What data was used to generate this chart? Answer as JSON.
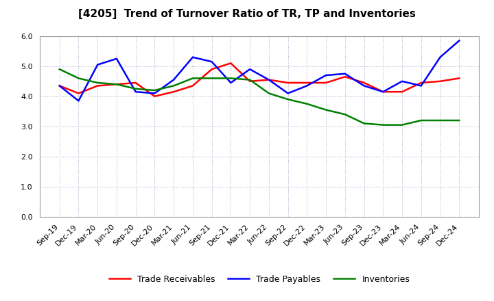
{
  "title": "[4205]  Trend of Turnover Ratio of TR, TP and Inventories",
  "labels": [
    "Sep-19",
    "Dec-19",
    "Mar-20",
    "Jun-20",
    "Sep-20",
    "Dec-20",
    "Mar-21",
    "Jun-21",
    "Sep-21",
    "Dec-21",
    "Mar-22",
    "Jun-22",
    "Sep-22",
    "Dec-22",
    "Mar-23",
    "Jun-23",
    "Sep-23",
    "Dec-23",
    "Mar-24",
    "Jun-24",
    "Sep-24",
    "Dec-24"
  ],
  "trade_receivables": [
    4.35,
    4.1,
    4.35,
    4.4,
    4.45,
    4.0,
    4.15,
    4.35,
    4.9,
    5.1,
    4.5,
    4.55,
    4.45,
    4.45,
    4.45,
    4.65,
    4.45,
    4.15,
    4.15,
    4.45,
    4.5,
    4.6
  ],
  "trade_payables": [
    4.35,
    3.85,
    5.05,
    5.25,
    4.15,
    4.1,
    4.55,
    5.3,
    5.15,
    4.45,
    4.9,
    4.55,
    4.1,
    4.35,
    4.7,
    4.75,
    4.35,
    4.15,
    4.5,
    4.35,
    5.3,
    5.85
  ],
  "inventories": [
    4.9,
    4.6,
    4.45,
    4.4,
    4.25,
    4.2,
    4.35,
    4.6,
    4.6,
    4.6,
    4.55,
    4.1,
    3.9,
    3.75,
    3.55,
    3.4,
    3.1,
    3.05,
    3.05,
    3.2,
    3.2,
    3.2
  ],
  "tr_color": "#ff0000",
  "tp_color": "#0000ff",
  "inv_color": "#008000",
  "tr_label": "Trade Receivables",
  "tp_label": "Trade Payables",
  "inv_label": "Inventories",
  "ylim": [
    0.0,
    6.0
  ],
  "yticks": [
    0.0,
    1.0,
    2.0,
    3.0,
    4.0,
    5.0,
    6.0
  ],
  "background_color": "#ffffff",
  "grid_color": "#aaaacc",
  "title_fontsize": 11,
  "legend_fontsize": 9,
  "tick_fontsize": 8,
  "linewidth": 1.8
}
